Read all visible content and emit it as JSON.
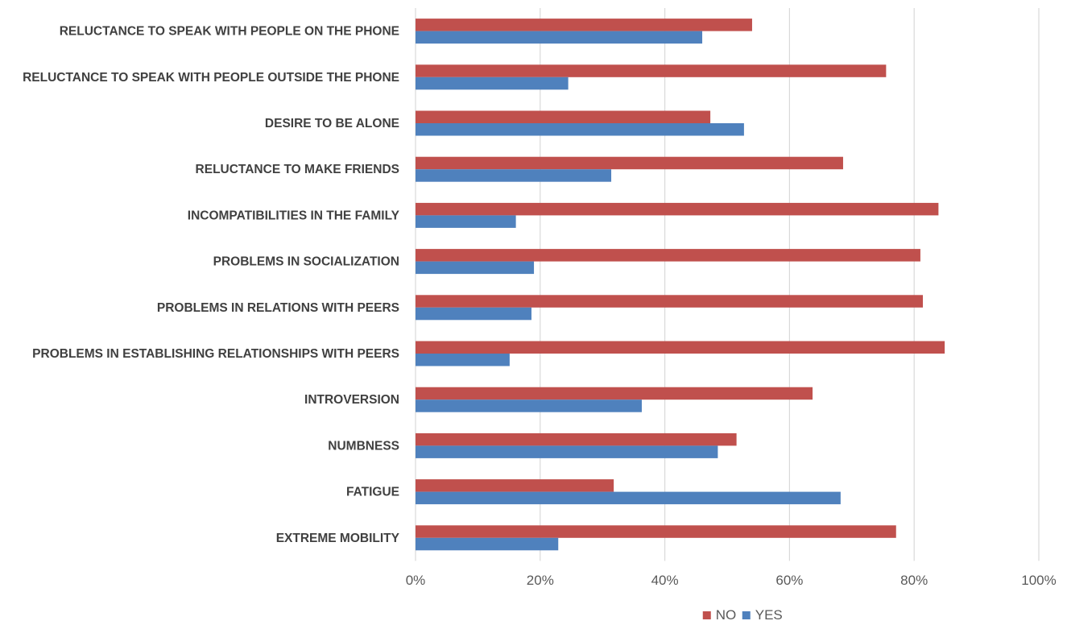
{
  "chart_data": {
    "type": "bar",
    "orientation": "horizontal",
    "title": "",
    "xlabel": "",
    "ylabel": "",
    "categories": [
      "RELUCTANCE TO SPEAK WITH PEOPLE ON THE PHONE",
      "RELUCTANCE TO SPEAK WITH PEOPLE OUTSIDE THE PHONE",
      "DESIRE TO BE ALONE",
      "RELUCTANCE TO MAKE FRIENDS",
      "INCOMPATIBILITIES IN THE FAMILY",
      "PROBLEMS IN SOCIALIZATION",
      "PROBLEMS IN RELATIONS WITH PEERS",
      "PROBLEMS IN ESTABLISHING RELATIONSHIPS WITH PEERS",
      "INTROVERSION",
      "NUMBNESS",
      "FATIGUE",
      "EXTREME MOBILITY"
    ],
    "series": [
      {
        "name": "NO",
        "color": "#c0504d",
        "values": [
          54,
          75.5,
          47.3,
          68.6,
          83.9,
          81,
          81.4,
          84.9,
          63.7,
          51.5,
          31.8,
          77.1
        ]
      },
      {
        "name": "YES",
        "color": "#4f81bd",
        "values": [
          46,
          24.5,
          52.7,
          31.4,
          16.1,
          19,
          18.6,
          15.1,
          36.3,
          48.5,
          68.2,
          22.9
        ]
      }
    ],
    "xlim": [
      0,
      100
    ],
    "x_ticks": [
      "0%",
      "20%",
      "40%",
      "60%",
      "80%",
      "100%"
    ],
    "tick_values": [
      0,
      20,
      40,
      60,
      80,
      100
    ],
    "grid": true,
    "legend_position": "bottom"
  }
}
